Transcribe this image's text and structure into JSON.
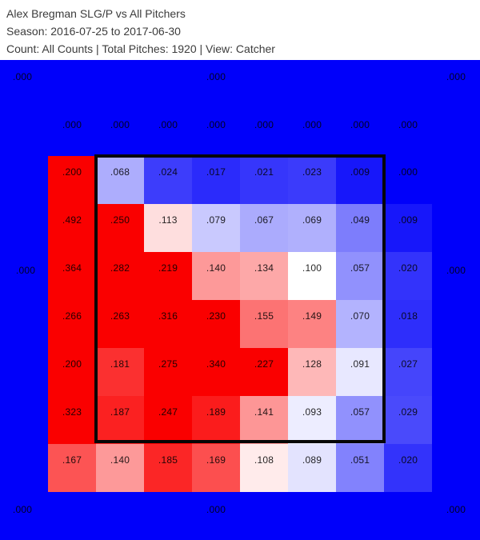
{
  "header": {
    "title": "Alex Bregman SLG/P vs All Pitchers",
    "season_line": "Season: 2016-07-25 to 2017-06-30",
    "count_line": "Count: All Counts | Total Pitches: 1920 | View: Catcher"
  },
  "chart_data": {
    "type": "heatmap",
    "title": "Alex Bregman SLG/P vs All Pitchers",
    "metric": "SLG/P",
    "view": "Catcher",
    "total_pitches": "1920",
    "grid_columns": 8,
    "grid_rows": 7,
    "rows": [
      [
        ".200",
        ".068",
        ".024",
        ".017",
        ".021",
        ".023",
        ".009",
        ".000"
      ],
      [
        ".492",
        ".250",
        ".113",
        ".079",
        ".067",
        ".069",
        ".049",
        ".009"
      ],
      [
        ".364",
        ".282",
        ".219",
        ".140",
        ".134",
        ".100",
        ".057",
        ".020"
      ],
      [
        ".266",
        ".263",
        ".316",
        ".230",
        ".155",
        ".149",
        ".070",
        ".018"
      ],
      [
        ".200",
        ".181",
        ".275",
        ".340",
        ".227",
        ".128",
        ".091",
        ".027"
      ],
      [
        ".323",
        ".187",
        ".247",
        ".189",
        ".141",
        ".093",
        ".057",
        ".029"
      ],
      [
        ".167",
        ".140",
        ".185",
        ".169",
        ".108",
        ".089",
        ".051",
        ".020"
      ]
    ],
    "outer_zone_labels": {
      "top": [
        ".000",
        ".000",
        ".000"
      ],
      "upper_band": [
        ".000",
        ".000",
        ".000",
        ".000",
        ".000",
        ".000",
        ".000",
        ".000"
      ],
      "left": ".000",
      "right": ".000",
      "bottom": [
        ".000",
        ".000",
        ".000"
      ]
    },
    "strike_zone_outline": true,
    "colorscale": {
      "min_color": "#0000fa",
      "mid_color": "#ffffff",
      "max_color": "#fa0000",
      "white_point": 0.1,
      "saturation_point": 0.2
    },
    "background_color": "#0000fa",
    "legend": "none"
  }
}
